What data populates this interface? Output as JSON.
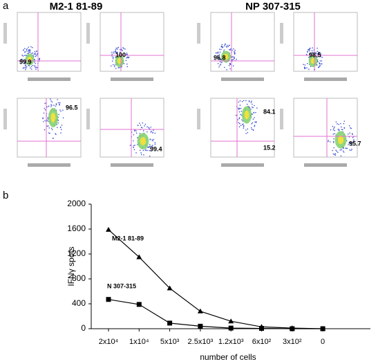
{
  "figure": {
    "panel_a_label": "a",
    "panel_b_label": "b"
  },
  "flow_panels": [
    {
      "title": "M2-1 81-89",
      "plots": [
        {
          "labels": [
            "99.9"
          ]
        },
        {
          "labels": [
            "100"
          ]
        },
        {
          "labels": [
            "96.5"
          ]
        },
        {
          "labels": [
            "99.4"
          ]
        }
      ]
    },
    {
      "title": "NP 307-315",
      "plots": [
        {
          "labels": [
            "96.8"
          ]
        },
        {
          "labels": [
            "98.5"
          ]
        },
        {
          "labels": [
            "84.1",
            "15.2"
          ]
        },
        {
          "labels": [
            "95.7"
          ]
        }
      ]
    }
  ],
  "chart_data": {
    "type": "line",
    "y_label": "IFNγ spots",
    "x_label": "number of cells",
    "categories": [
      "2x10⁴",
      "1x10⁴",
      "5x10³",
      "2.5x10³",
      "1.2x10³",
      "6x10²",
      "3x10²",
      "0"
    ],
    "series": [
      {
        "name": "M2-1 81-89",
        "color": "#000000",
        "marker": "triangle",
        "values": [
          1590,
          1150,
          650,
          280,
          120,
          30,
          10,
          0
        ]
      },
      {
        "name": "N 307-315",
        "color": "#000000",
        "marker": "square",
        "values": [
          470,
          390,
          90,
          40,
          10,
          5,
          0,
          0
        ]
      }
    ],
    "ylim": [
      0,
      2000
    ],
    "yticks": [
      0,
      400,
      800,
      1200,
      1600,
      2000
    ]
  }
}
